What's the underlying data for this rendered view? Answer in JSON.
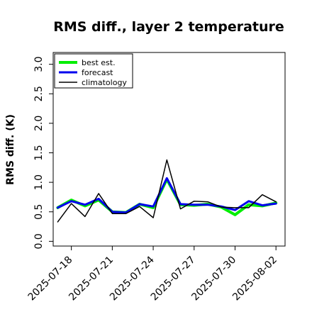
{
  "chart_data": {
    "type": "line",
    "title": "RMS diff., layer 2 temperature",
    "xlabel": "",
    "ylabel": "RMS diff. (K)",
    "ylim": [
      -0.08,
      3.2
    ],
    "yticks": [
      0.0,
      0.5,
      1.0,
      1.5,
      2.0,
      2.5,
      3.0
    ],
    "ytick_labels": [
      "0.0",
      "0.5",
      "1.0",
      "1.5",
      "2.0",
      "2.5",
      "3.0"
    ],
    "xlim": [
      "2025-07-16T16:00",
      "2025-08-02T16:00"
    ],
    "xticks": [
      "2025-07-18",
      "2025-07-21",
      "2025-07-24",
      "2025-07-27",
      "2025-07-30",
      "2025-08-02"
    ],
    "xtick_labels": [
      "2025-07-18",
      "2025-07-21",
      "2025-07-24",
      "2025-07-27",
      "2025-07-30",
      "2025-08-02"
    ],
    "highlight_xtick": "2025-07-24",
    "highlight_color": "#228B22",
    "grid": false,
    "legend_position": "upper-left",
    "x": [
      "2025-07-17",
      "2025-07-18",
      "2025-07-19",
      "2025-07-20",
      "2025-07-21",
      "2025-07-22",
      "2025-07-23",
      "2025-07-24",
      "2025-07-25",
      "2025-07-26",
      "2025-07-27",
      "2025-07-28",
      "2025-07-29",
      "2025-07-30",
      "2025-07-31",
      "2025-08-01",
      "2025-08-02"
    ],
    "series": [
      {
        "name": "best est.",
        "color": "#00ee00",
        "values": [
          0.57,
          0.7,
          0.6,
          0.7,
          0.5,
          0.49,
          0.63,
          0.57,
          1.05,
          0.62,
          0.61,
          0.63,
          0.58,
          0.45,
          0.62,
          0.6,
          0.65
        ]
      },
      {
        "name": "forecast",
        "color": "#0000ee",
        "values": [
          0.57,
          0.68,
          0.62,
          0.72,
          0.5,
          0.49,
          0.63,
          0.59,
          1.07,
          0.63,
          0.62,
          0.62,
          0.59,
          0.53,
          0.68,
          0.61,
          0.64
        ]
      },
      {
        "name": "climatology",
        "color": "#000000",
        "values": [
          0.33,
          0.64,
          0.42,
          0.81,
          0.47,
          0.47,
          0.59,
          0.4,
          1.38,
          0.55,
          0.68,
          0.67,
          0.58,
          0.57,
          0.57,
          0.79,
          0.67
        ]
      }
    ]
  }
}
